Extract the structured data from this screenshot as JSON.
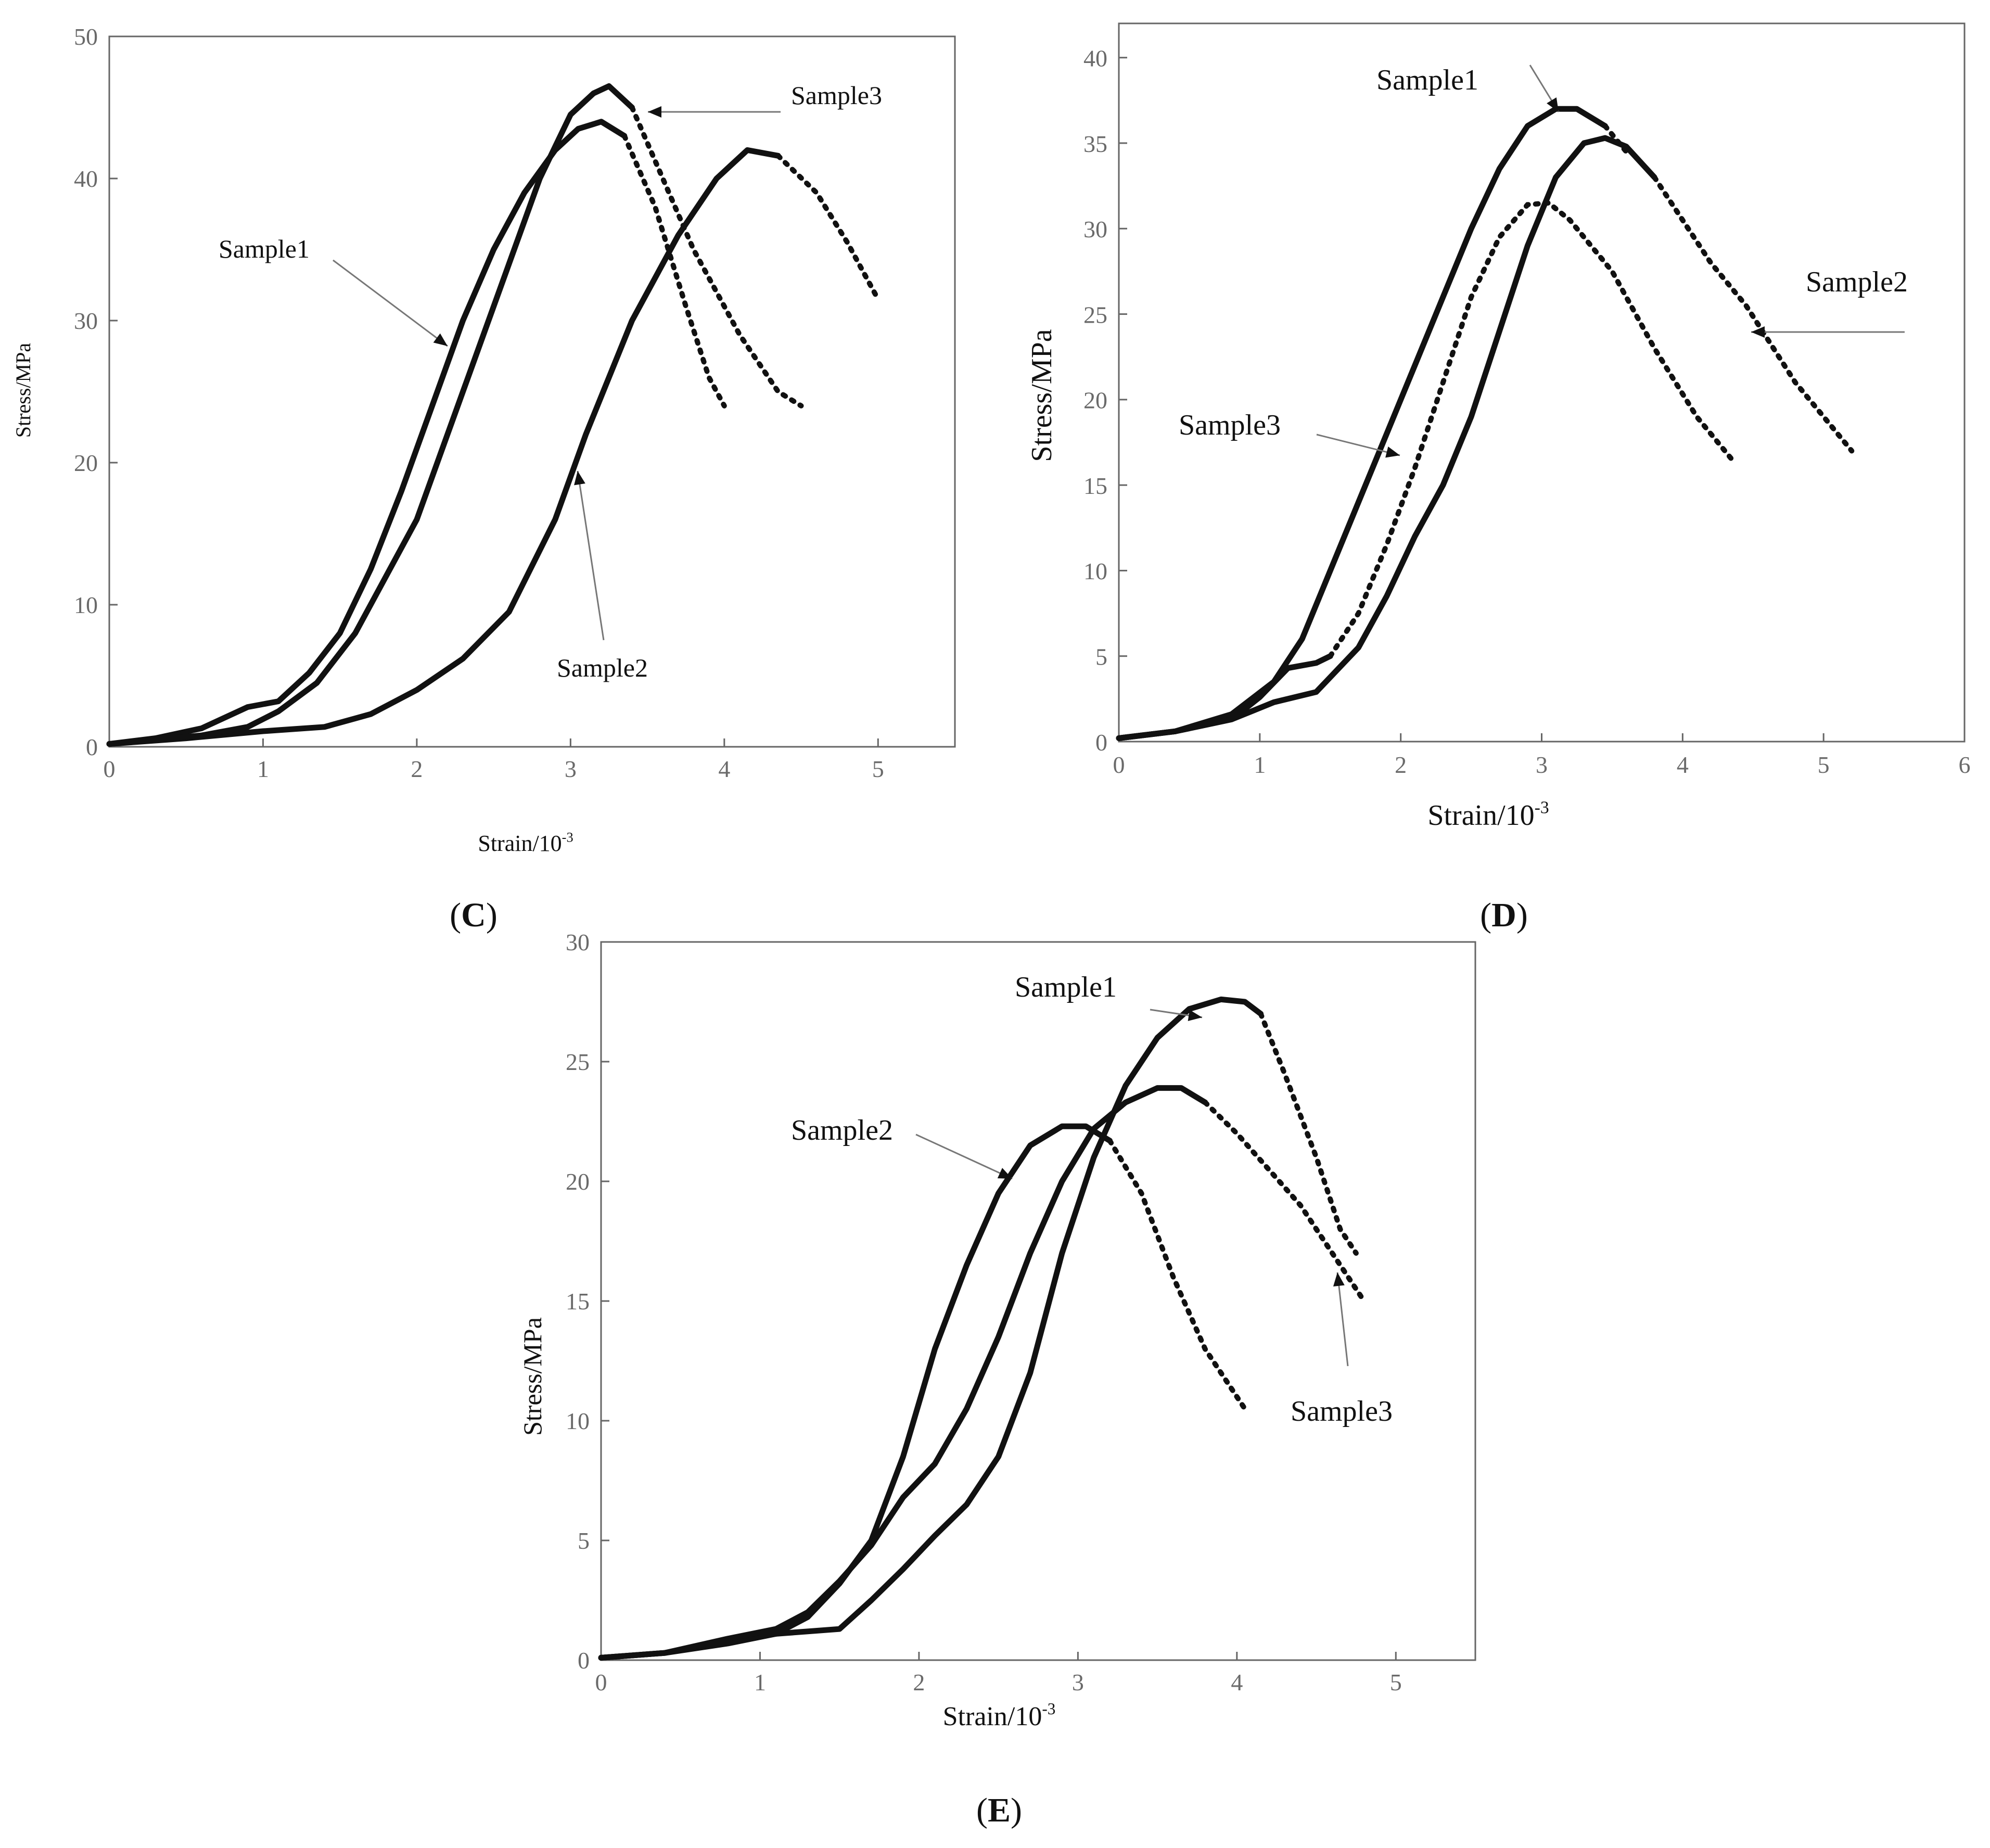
{
  "chart_data": [
    {
      "panel": "C",
      "type": "line",
      "title": "",
      "panel_label_prefix": "(",
      "panel_label_letter": "C",
      "panel_label_suffix": ")",
      "xlabel": "Strain/10",
      "xlabel_sup": "-3",
      "ylabel": "Stress/MPa",
      "xlim": [
        0,
        5.5
      ],
      "ylim": [
        0,
        50
      ],
      "xticks": [
        "0",
        "1",
        "2",
        "3",
        "4",
        "5"
      ],
      "yticks": [
        "0",
        "10",
        "20",
        "30",
        "40",
        "50"
      ],
      "grid": false,
      "series": [
        {
          "name": "Sample1",
          "solid": [
            [
              0,
              0.2
            ],
            [
              0.3,
              0.6
            ],
            [
              0.6,
              1.3
            ],
            [
              0.9,
              2.8
            ],
            [
              1.1,
              3.2
            ],
            [
              1.3,
              5.2
            ],
            [
              1.5,
              8
            ],
            [
              1.7,
              12.5
            ],
            [
              1.9,
              18
            ],
            [
              2.1,
              24
            ],
            [
              2.3,
              30
            ],
            [
              2.5,
              35
            ],
            [
              2.7,
              39
            ],
            [
              2.9,
              42
            ],
            [
              3.05,
              43.5
            ],
            [
              3.2,
              44
            ],
            [
              3.35,
              43
            ]
          ],
          "dotted": [
            [
              3.35,
              43
            ],
            [
              3.55,
              38
            ],
            [
              3.75,
              31
            ],
            [
              3.9,
              26
            ],
            [
              4.0,
              24
            ]
          ]
        },
        {
          "name": "Sample2",
          "solid": [
            [
              0,
              0.2
            ],
            [
              0.5,
              0.6
            ],
            [
              1.0,
              1.1
            ],
            [
              1.4,
              1.4
            ],
            [
              1.6,
              2
            ],
            [
              1.7,
              2.3
            ],
            [
              2.0,
              4
            ],
            [
              2.3,
              6.2
            ],
            [
              2.6,
              9.5
            ],
            [
              2.9,
              16
            ],
            [
              3.1,
              22
            ],
            [
              3.4,
              30
            ],
            [
              3.7,
              36
            ],
            [
              3.95,
              40
            ],
            [
              4.15,
              42
            ],
            [
              4.35,
              41.6
            ]
          ],
          "dotted": [
            [
              4.35,
              41.6
            ],
            [
              4.6,
              39
            ],
            [
              4.8,
              35.5
            ],
            [
              5.0,
              31.5
            ]
          ]
        },
        {
          "name": "Sample3",
          "solid": [
            [
              0,
              0.2
            ],
            [
              0.3,
              0.5
            ],
            [
              0.6,
              0.8
            ],
            [
              0.9,
              1.4
            ],
            [
              1.1,
              2.5
            ],
            [
              1.35,
              4.5
            ],
            [
              1.6,
              8
            ],
            [
              1.8,
              12
            ],
            [
              2.0,
              16
            ],
            [
              2.2,
              22
            ],
            [
              2.4,
              28
            ],
            [
              2.6,
              34
            ],
            [
              2.8,
              40
            ],
            [
              3.0,
              44.5
            ],
            [
              3.15,
              46
            ],
            [
              3.25,
              46.5
            ],
            [
              3.4,
              45
            ]
          ],
          "dotted": [
            [
              3.4,
              45
            ],
            [
              3.6,
              40
            ],
            [
              3.8,
              35
            ],
            [
              4.1,
              29
            ],
            [
              4.35,
              25
            ],
            [
              4.5,
              24
            ]
          ]
        }
      ],
      "annotations": [
        {
          "text": "Sample1",
          "target_series": "Sample1"
        },
        {
          "text": "Sample2",
          "target_series": "Sample2"
        },
        {
          "text": "Sample3",
          "target_series": "Sample3"
        }
      ]
    },
    {
      "panel": "D",
      "type": "line",
      "title": "",
      "panel_label_prefix": "(",
      "panel_label_letter": "D",
      "panel_label_suffix": ")",
      "xlabel": "Strain/10",
      "xlabel_sup": "-3",
      "ylabel": "Stress/MPa",
      "xlim": [
        0,
        6
      ],
      "ylim": [
        0,
        42
      ],
      "xticks": [
        "0",
        "1",
        "2",
        "3",
        "4",
        "5",
        "6"
      ],
      "yticks": [
        "0",
        "5",
        "10",
        "15",
        "20",
        "25",
        "30",
        "35",
        "40"
      ],
      "grid": false,
      "series": [
        {
          "name": "Sample1",
          "solid": [
            [
              0,
              0.2
            ],
            [
              0.4,
              0.6
            ],
            [
              0.8,
              1.6
            ],
            [
              1.1,
              3.5
            ],
            [
              1.3,
              6
            ],
            [
              1.5,
              10
            ],
            [
              1.7,
              14
            ],
            [
              1.9,
              18
            ],
            [
              2.1,
              22
            ],
            [
              2.3,
              26
            ],
            [
              2.5,
              30
            ],
            [
              2.7,
              33.5
            ],
            [
              2.9,
              36
            ],
            [
              3.1,
              37
            ],
            [
              3.25,
              37
            ],
            [
              3.45,
              36
            ]
          ],
          "dotted": [
            [
              3.45,
              36
            ],
            [
              3.6,
              34.5
            ]
          ]
        },
        {
          "name": "Sample2",
          "solid": [
            [
              0,
              0.2
            ],
            [
              0.4,
              0.6
            ],
            [
              0.8,
              1.3
            ],
            [
              1.1,
              2.3
            ],
            [
              1.4,
              2.9
            ],
            [
              1.7,
              5.5
            ],
            [
              1.9,
              8.5
            ],
            [
              2.1,
              12
            ],
            [
              2.3,
              15
            ],
            [
              2.5,
              19
            ],
            [
              2.7,
              24
            ],
            [
              2.9,
              29
            ],
            [
              3.1,
              33
            ],
            [
              3.3,
              35
            ],
            [
              3.45,
              35.3
            ],
            [
              3.6,
              34.8
            ],
            [
              3.8,
              33
            ]
          ],
          "dotted": [
            [
              3.8,
              33
            ],
            [
              4.0,
              30.5
            ],
            [
              4.2,
              28
            ],
            [
              4.45,
              25.5
            ],
            [
              4.8,
              21
            ],
            [
              5.0,
              19
            ],
            [
              5.2,
              17
            ]
          ]
        },
        {
          "name": "Sample3",
          "solid": [
            [
              0,
              0.2
            ],
            [
              0.4,
              0.6
            ],
            [
              0.8,
              1.3
            ],
            [
              1.0,
              2.6
            ],
            [
              1.2,
              4.3
            ],
            [
              1.4,
              4.6
            ],
            [
              1.5,
              5
            ]
          ],
          "dotted": [
            [
              1.5,
              5
            ],
            [
              1.7,
              7.5
            ],
            [
              1.9,
              11.5
            ],
            [
              2.1,
              16
            ],
            [
              2.3,
              21
            ],
            [
              2.5,
              26
            ],
            [
              2.7,
              29.5
            ],
            [
              2.9,
              31.4
            ],
            [
              3.05,
              31.5
            ],
            [
              3.2,
              30.5
            ],
            [
              3.5,
              27.5
            ],
            [
              3.8,
              23
            ],
            [
              4.1,
              19
            ],
            [
              4.35,
              16.5
            ]
          ]
        }
      ],
      "annotations": [
        {
          "text": "Sample1",
          "target_series": "Sample1"
        },
        {
          "text": "Sample2",
          "target_series": "Sample2"
        },
        {
          "text": "Sample3",
          "target_series": "Sample3"
        }
      ]
    },
    {
      "panel": "E",
      "type": "line",
      "title": "",
      "panel_label_prefix": "(",
      "panel_label_letter": "E",
      "panel_label_suffix": ")",
      "xlabel": "Strain/10",
      "xlabel_sup": "-3",
      "ylabel": "Stress/MPa",
      "xlim": [
        0,
        5.5
      ],
      "ylim": [
        0,
        30
      ],
      "xticks": [
        "0",
        "1",
        "2",
        "3",
        "4",
        "5"
      ],
      "yticks": [
        "0",
        "5",
        "10",
        "15",
        "20",
        "25",
        "30"
      ],
      "grid": false,
      "series": [
        {
          "name": "Sample1",
          "solid": [
            [
              0,
              0.1
            ],
            [
              0.4,
              0.3
            ],
            [
              0.8,
              0.8
            ],
            [
              1.1,
              1.1
            ],
            [
              1.3,
              1.2
            ],
            [
              1.5,
              1.3
            ],
            [
              1.7,
              2.5
            ],
            [
              1.9,
              3.8
            ],
            [
              2.1,
              5.2
            ],
            [
              2.3,
              6.5
            ],
            [
              2.5,
              8.5
            ],
            [
              2.7,
              12
            ],
            [
              2.9,
              17
            ],
            [
              3.1,
              21
            ],
            [
              3.3,
              24
            ],
            [
              3.5,
              26
            ],
            [
              3.7,
              27.2
            ],
            [
              3.9,
              27.6
            ],
            [
              4.05,
              27.5
            ],
            [
              4.15,
              27
            ]
          ],
          "dotted": [
            [
              4.15,
              27
            ],
            [
              4.3,
              24.5
            ],
            [
              4.5,
              21
            ],
            [
              4.65,
              18
            ],
            [
              4.75,
              17
            ]
          ]
        },
        {
          "name": "Sample2",
          "solid": [
            [
              0,
              0.1
            ],
            [
              0.4,
              0.3
            ],
            [
              0.8,
              0.7
            ],
            [
              1.1,
              1.1
            ],
            [
              1.3,
              1.8
            ],
            [
              1.5,
              3.2
            ],
            [
              1.7,
              5
            ],
            [
              1.9,
              8.5
            ],
            [
              2.1,
              13
            ],
            [
              2.3,
              16.5
            ],
            [
              2.5,
              19.5
            ],
            [
              2.7,
              21.5
            ],
            [
              2.9,
              22.3
            ],
            [
              3.05,
              22.3
            ],
            [
              3.2,
              21.7
            ]
          ],
          "dotted": [
            [
              3.2,
              21.7
            ],
            [
              3.4,
              19.5
            ],
            [
              3.6,
              16
            ],
            [
              3.8,
              13
            ],
            [
              4.05,
              10.5
            ]
          ]
        },
        {
          "name": "Sample3",
          "solid": [
            [
              0,
              0.1
            ],
            [
              0.4,
              0.3
            ],
            [
              0.8,
              0.9
            ],
            [
              1.1,
              1.3
            ],
            [
              1.3,
              2
            ],
            [
              1.5,
              3.3
            ],
            [
              1.7,
              4.8
            ],
            [
              1.9,
              6.8
            ],
            [
              2.1,
              8.2
            ],
            [
              2.3,
              10.5
            ],
            [
              2.5,
              13.5
            ],
            [
              2.7,
              17
            ],
            [
              2.9,
              20
            ],
            [
              3.1,
              22.2
            ],
            [
              3.3,
              23.3
            ],
            [
              3.5,
              23.9
            ],
            [
              3.65,
              23.9
            ],
            [
              3.8,
              23.3
            ]
          ],
          "dotted": [
            [
              3.8,
              23.3
            ],
            [
              4.0,
              22
            ],
            [
              4.2,
              20.5
            ],
            [
              4.4,
              19
            ],
            [
              4.6,
              17
            ],
            [
              4.8,
              15
            ]
          ]
        }
      ],
      "annotations": [
        {
          "text": "Sample1",
          "target_series": "Sample1"
        },
        {
          "text": "Sample2",
          "target_series": "Sample2"
        },
        {
          "text": "Sample3",
          "target_series": "Sample3"
        }
      ]
    }
  ]
}
